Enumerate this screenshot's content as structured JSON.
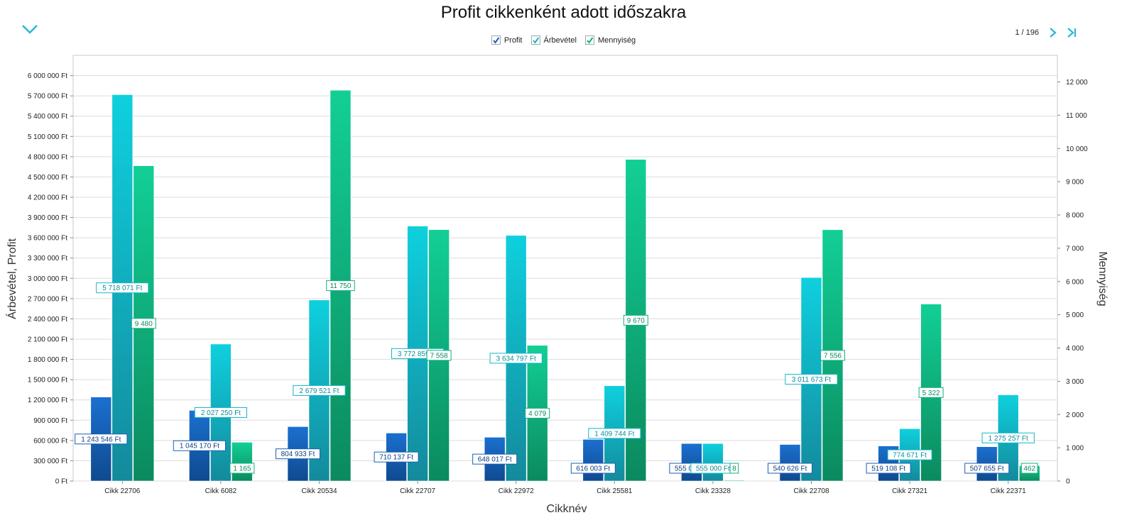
{
  "header": {
    "collapse_icon": "chevron-down-icon"
  },
  "pager": {
    "text": "1 / 196",
    "next_icon": "chevron-right-icon",
    "last_icon": "skip-to-last-icon"
  },
  "legend": [
    {
      "label": "Profit",
      "checked": true,
      "color": "#1a5fb4"
    },
    {
      "label": "Árbevétel",
      "checked": true,
      "color": "#12c4d4"
    },
    {
      "label": "Mennyiség",
      "checked": true,
      "color": "#10c48c"
    }
  ],
  "chart_data": {
    "type": "bar",
    "title": "Profit cikkenként adott időszakra",
    "xlabel": "Cikknév",
    "ylabel": "Árbevétel, Profit",
    "y2label": "Mennyiség",
    "ylim": [
      0,
      6300000
    ],
    "y2lim": [
      0,
      12800
    ],
    "yticks": [
      0,
      300000,
      600000,
      900000,
      1200000,
      1500000,
      1800000,
      2100000,
      2400000,
      2700000,
      3000000,
      3300000,
      3600000,
      3900000,
      4200000,
      4500000,
      4800000,
      5100000,
      5400000,
      5700000,
      6000000
    ],
    "ytick_labels": [
      "0 Ft",
      "300 000 Ft",
      "600 000 Ft",
      "900 000 Ft",
      "1 200 000 Ft",
      "1 500 000 Ft",
      "1 800 000 Ft",
      "2 100 000 Ft",
      "2 400 000 Ft",
      "2 700 000 Ft",
      "3 000 000 Ft",
      "3 300 000 Ft",
      "3 600 000 Ft",
      "3 900 000 Ft",
      "4 200 000 Ft",
      "4 500 000 Ft",
      "4 800 000 Ft",
      "5 100 000 Ft",
      "5 400 000 Ft",
      "5 700 000 Ft",
      "6 000 000 Ft"
    ],
    "y2ticks": [
      0,
      1000,
      2000,
      3000,
      4000,
      5000,
      6000,
      7000,
      8000,
      9000,
      10000,
      11000,
      12000
    ],
    "y2tick_labels": [
      "0",
      "1 000",
      "2 000",
      "3 000",
      "4 000",
      "5 000",
      "6 000",
      "7 000",
      "8 000",
      "9 000",
      "10 000",
      "11 000",
      "12 000"
    ],
    "grid": true,
    "legend_position": "top-center",
    "categories": [
      "Cikk 22706",
      "Cikk 6082",
      "Cikk 20534",
      "Cikk 22707",
      "Cikk 22972",
      "Cikk 25581",
      "Cikk 23328",
      "Cikk 22708",
      "Cikk 27321",
      "Cikk 22371"
    ],
    "series": [
      {
        "name": "Profit",
        "axis": "left",
        "color": "#1a5fb4",
        "values": [
          1243546,
          1045170,
          804933,
          710137,
          648017,
          616003,
          555000,
          540626,
          519108,
          507655
        ],
        "labels": [
          "1 243 546 Ft",
          "1 045 170 Ft",
          "804 933 Ft",
          "710 137 Ft",
          "648 017 Ft",
          "616 003 Ft",
          "555 000 Ft",
          "540 626 Ft",
          "519 108 Ft",
          "507 655 Ft"
        ]
      },
      {
        "name": "Árbevétel",
        "axis": "left",
        "color": "#12c4d4",
        "values": [
          5718071,
          2027250,
          2679521,
          3772859,
          3634797,
          1409744,
          555000,
          3011673,
          774671,
          1275257
        ],
        "labels": [
          "5 718 071 Ft",
          "2 027 250 Ft",
          "2 679 521 Ft",
          "3 772 859 Ft",
          "3 634 797 Ft",
          "1 409 744 Ft",
          "555 000 Ft",
          "3 011 673 Ft",
          "774 671 Ft",
          "1 275 257 Ft"
        ]
      },
      {
        "name": "Mennyiség",
        "axis": "right",
        "color": "#10c48c",
        "values": [
          9480,
          1165,
          11750,
          7558,
          4079,
          9670,
          8,
          7556,
          5322,
          462
        ],
        "labels": [
          "9 480",
          "1 165",
          "11 750",
          "7 558",
          "4 079",
          "9 670",
          "8",
          "7 556",
          "5 322",
          "462"
        ]
      }
    ]
  }
}
